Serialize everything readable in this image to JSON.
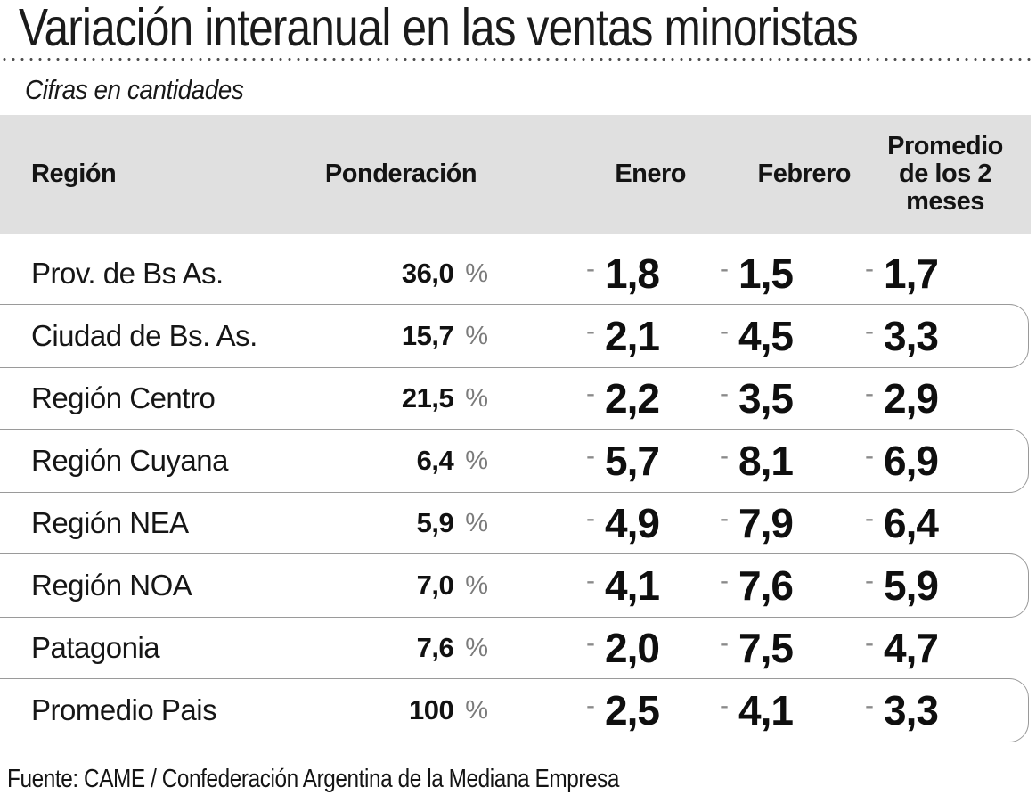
{
  "title": "Variación interanual en las ventas minoristas",
  "subtitle": "Cifras en cantidades",
  "columns": {
    "region": "Región",
    "ponderacion": "Ponderación",
    "enero": "Enero",
    "febrero": "Febrero",
    "promedio": "Promedio de los 2 meses"
  },
  "unit_percent": "%",
  "minus": "-",
  "rows": [
    {
      "region": "Prov. de Bs As.",
      "ponderacion": "36,0",
      "enero": "1,8",
      "febrero": "1,5",
      "promedio": "1,7",
      "boxed": false
    },
    {
      "region": "Ciudad de Bs. As.",
      "ponderacion": "15,7",
      "enero": "2,1",
      "febrero": "4,5",
      "promedio": "3,3",
      "boxed": true
    },
    {
      "region": "Región Centro",
      "ponderacion": "21,5",
      "enero": "2,2",
      "febrero": "3,5",
      "promedio": "2,9",
      "boxed": false
    },
    {
      "region": "Región Cuyana",
      "ponderacion": "6,4",
      "enero": "5,7",
      "febrero": "8,1",
      "promedio": "6,9",
      "boxed": true
    },
    {
      "region": "Región NEA",
      "ponderacion": "5,9",
      "enero": "4,9",
      "febrero": "7,9",
      "promedio": "6,4",
      "boxed": false
    },
    {
      "region": "Región NOA",
      "ponderacion": "7,0",
      "enero": "4,1",
      "febrero": "7,6",
      "promedio": "5,9",
      "boxed": true
    },
    {
      "region": "Patagonia",
      "ponderacion": "7,6",
      "enero": "2,0",
      "febrero": "7,5",
      "promedio": "4,7",
      "boxed": false
    },
    {
      "region": "Promedio Pais",
      "ponderacion": "100",
      "enero": "2,5",
      "febrero": "4,1",
      "promedio": "3,3",
      "boxed": true
    }
  ],
  "footer": "Fuente: CAME / Confederación Argentina de la Mediana Empresa",
  "colors": {
    "header_bg": "#e0e0e0",
    "muted_gray": "#7b7b7b",
    "line_gray": "#9a9a9a",
    "dot_rule": "#4d4d4d",
    "text": "#111111"
  },
  "chart_data": {
    "type": "table",
    "title": "Variación interanual en las ventas minoristas",
    "subtitle": "Cifras en cantidades",
    "unit": "%",
    "columns": [
      "Región",
      "Ponderación",
      "Enero",
      "Febrero",
      "Promedio de los 2 meses"
    ],
    "rows": [
      [
        "Prov. de Bs As.",
        36.0,
        -1.8,
        -1.5,
        -1.7
      ],
      [
        "Ciudad de Bs. As.",
        15.7,
        -2.1,
        -4.5,
        -3.3
      ],
      [
        "Región Centro",
        21.5,
        -2.2,
        -3.5,
        -2.9
      ],
      [
        "Región Cuyana",
        6.4,
        -5.7,
        -8.1,
        -6.9
      ],
      [
        "Región NEA",
        5.9,
        -4.9,
        -7.9,
        -6.4
      ],
      [
        "Región NOA",
        7.0,
        -4.1,
        -7.6,
        -5.9
      ],
      [
        "Patagonia",
        7.6,
        -2.0,
        -7.5,
        -4.7
      ],
      [
        "Promedio Pais",
        100.0,
        -2.5,
        -4.1,
        -3.3
      ]
    ],
    "source": "Fuente: CAME / Confederación Argentina de la Mediana Empresa"
  }
}
